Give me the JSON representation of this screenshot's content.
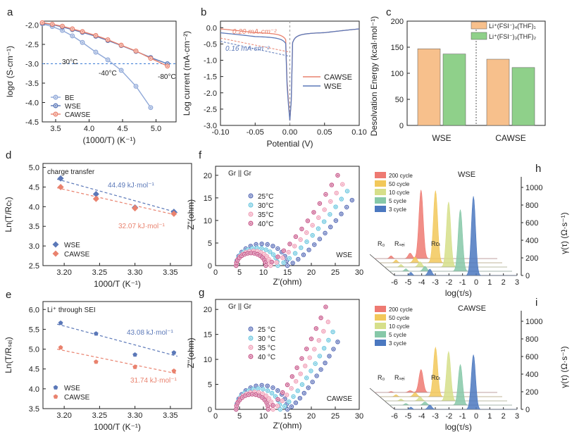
{
  "figure": {
    "panels": [
      {
        "id": "a",
        "type": "line",
        "xlabel": "(1000/T) (K⁻¹)",
        "ylabel": "logσ (S·cm⁻¹)",
        "xlim": [
          3.3,
          5.3
        ],
        "ylim": [
          -4.5,
          -1.9
        ],
        "xticks": [
          "3.5",
          "4.0",
          "4.5",
          "5.0"
        ],
        "yticks": [
          "-2.0",
          "-2.5",
          "-3.0",
          "-3.5",
          "-4.0",
          "-4.5"
        ],
        "series": [
          {
            "name": "BE",
            "color": "#8fa8d8",
            "x": [
              3.3,
              3.45,
              3.6,
              3.75,
              3.9,
              4.1,
              4.28,
              4.48,
              4.7,
              4.92
            ],
            "y": [
              -1.97,
              -2.04,
              -2.14,
              -2.28,
              -2.45,
              -2.7,
              -2.9,
              -3.17,
              -3.58,
              -4.13
            ]
          },
          {
            "name": "WSE",
            "color": "#5b78b8",
            "x": [
              3.3,
              3.45,
              3.6,
              3.75,
              3.9,
              4.1,
              4.28,
              4.48,
              4.7,
              4.92,
              5.17
            ],
            "y": [
              -1.95,
              -1.99,
              -2.05,
              -2.12,
              -2.19,
              -2.29,
              -2.4,
              -2.53,
              -2.68,
              -2.84,
              -3.0
            ]
          },
          {
            "name": "CAWSE",
            "color": "#e9826e",
            "x": [
              3.3,
              3.45,
              3.6,
              3.75,
              3.9,
              4.1,
              4.28,
              4.48,
              4.7,
              4.92,
              5.17
            ],
            "y": [
              -1.94,
              -1.98,
              -2.03,
              -2.1,
              -2.17,
              -2.27,
              -2.38,
              -2.52,
              -2.67,
              -2.86,
              -3.06
            ]
          }
        ],
        "hline": -3.0,
        "annotations": [
          "30°C",
          "-40°C",
          "-80°C"
        ]
      },
      {
        "id": "b",
        "type": "line",
        "xlabel": "Potential (V)",
        "ylabel": "Log current (mA·cm⁻²)",
        "xlim": [
          -0.1,
          0.1
        ],
        "ylim": [
          -3.0,
          0.2
        ],
        "xticks": [
          "-0.10",
          "-0.05",
          "0.00",
          "0.05",
          "0.10"
        ],
        "yticks": [
          "0.0",
          "-0.5",
          "-1.0",
          "-1.5",
          "-2.0",
          "-2.5",
          "-3.0"
        ],
        "series": [
          {
            "name": "CAWSE",
            "color": "#e9826e"
          },
          {
            "name": "WSE",
            "color": "#5b78b8"
          }
        ],
        "annotations": [
          "0.20 mA·cm⁻²",
          "0.16 mA·cm⁻²"
        ]
      },
      {
        "id": "c",
        "type": "bar",
        "ylabel": "Desolvation Energy  (kcal·mol⁻¹)",
        "ylim": [
          0,
          200
        ],
        "yticks": [
          "0",
          "50",
          "100",
          "150",
          "200"
        ],
        "categories": [
          "WSE",
          "CAWSE"
        ],
        "series": [
          {
            "name": "Li⁺(FSI⁻)₄(THF)₁",
            "color": "#f7c08c",
            "values": [
              147,
              127
            ]
          },
          {
            "name": "Li⁺(FSI⁻)₃(THF)₂",
            "color": "#8fd08a",
            "values": [
              137,
              111
            ]
          }
        ]
      },
      {
        "id": "d",
        "type": "scatter",
        "xlabel": "1000/T (K⁻¹)",
        "ylabel": "Ln(T/Rᴄₜ)",
        "xlim": [
          3.17,
          3.38
        ],
        "ylim": [
          2.5,
          5.1
        ],
        "xticks": [
          "3.20",
          "3.25",
          "3.30",
          "3.35"
        ],
        "yticks": [
          "2.5",
          "3.0",
          "3.5",
          "4.0",
          "4.5",
          "5.0"
        ],
        "title": "charge transfer",
        "series": [
          {
            "name": "WSE",
            "color": "#5b78b8",
            "x": [
              3.195,
              3.245,
              3.3,
              3.355
            ],
            "y": [
              4.72,
              4.32,
              3.98,
              3.87
            ]
          },
          {
            "name": "CAWSE",
            "color": "#e9826e",
            "x": [
              3.195,
              3.245,
              3.3,
              3.355
            ],
            "y": [
              4.5,
              4.2,
              3.96,
              3.82
            ]
          }
        ],
        "annotations": [
          "44.49 kJ·mol⁻¹",
          "32.07 kJ·mol⁻¹"
        ]
      },
      {
        "id": "e",
        "type": "scatter",
        "xlabel": "1000/T (K⁻¹)",
        "ylabel": "Ln(T/Rₛₑᵢ)",
        "xlim": [
          3.17,
          3.38
        ],
        "ylim": [
          3.5,
          6.2
        ],
        "xticks": [
          "3.20",
          "3.25",
          "3.30",
          "3.35"
        ],
        "yticks": [
          "3.5",
          "4.0",
          "4.5",
          "5.0",
          "5.5",
          "6.0"
        ],
        "title": "Li⁺ through SEI",
        "series": [
          {
            "name": "WSE",
            "color": "#5b78b8",
            "x": [
              3.195,
              3.245,
              3.3,
              3.355
            ],
            "y": [
              5.66,
              5.39,
              4.86,
              4.91
            ]
          },
          {
            "name": "CAWSE",
            "color": "#e9826e",
            "x": [
              3.195,
              3.245,
              3.3,
              3.355
            ],
            "y": [
              5.04,
              4.68,
              4.55,
              4.45
            ]
          }
        ],
        "annotations": [
          "43.08 kJ·mol⁻¹",
          "31.74 kJ·mol⁻¹"
        ]
      },
      {
        "id": "f",
        "type": "scatter",
        "xlabel": "Z'(ohm)",
        "ylabel": "-Z''(ohm)",
        "xlim": [
          0,
          30
        ],
        "ylim": [
          0,
          22
        ],
        "xticks": [
          "0",
          "5",
          "10",
          "15",
          "20",
          "25",
          "30"
        ],
        "yticks": [
          "0",
          "5",
          "10",
          "15",
          "20"
        ],
        "title": "Gr || Gr",
        "label": "WSE",
        "series": [
          {
            "name": "25°C",
            "color": "#5b6fb8",
            "x": [
              15,
              28.5
            ],
            "y": [
              0,
              14.5
            ]
          },
          {
            "name": "30°C",
            "color": "#6ec8e0",
            "x": [
              13,
              27.5
            ],
            "y": [
              0,
              16.5
            ]
          },
          {
            "name": "35°C",
            "color": "#f0a0b8",
            "x": [
              11.5,
              26.5
            ],
            "y": [
              0,
              18
            ]
          },
          {
            "name": "40°C",
            "color": "#c85a8c",
            "x": [
              10.5,
              25.5
            ],
            "y": [
              0,
              20
            ]
          }
        ]
      },
      {
        "id": "g",
        "type": "scatter",
        "xlabel": "Z'(ohm)",
        "ylabel": "-Z''(ohm)",
        "xlim": [
          0,
          30
        ],
        "ylim": [
          0,
          22
        ],
        "xticks": [
          "0",
          "5",
          "10",
          "15",
          "20",
          "25",
          "30"
        ],
        "yticks": [
          "0",
          "5",
          "10",
          "15",
          "20"
        ],
        "title": "Gr || Gr",
        "label": "CAWSE",
        "series": [
          {
            "name": "25 °C",
            "color": "#5b6fb8",
            "x": [
              15,
              25.5
            ],
            "y": [
              0,
              13.5
            ]
          },
          {
            "name": "30 °C",
            "color": "#6ec8e0",
            "x": [
              13.5,
              24.5
            ],
            "y": [
              0,
              15.5
            ]
          },
          {
            "name": "35 °C",
            "color": "#f0a0b8",
            "x": [
              12,
              23.5
            ],
            "y": [
              0,
              17.5
            ]
          },
          {
            "name": "40 °C",
            "color": "#c85a8c",
            "x": [
              11,
              23
            ],
            "y": [
              0,
              20.5
            ]
          }
        ]
      },
      {
        "id": "h",
        "type": "area",
        "xlabel": "log(τ/s)",
        "zlabel": "γ(τ) (Ω·s⁻¹)",
        "xticks": [
          "-6",
          "-5",
          "-4",
          "-3",
          "-2",
          "-1",
          "0",
          "1",
          "2",
          "3"
        ],
        "zticks": [
          "0",
          "200",
          "400",
          "600",
          "800",
          "1000"
        ],
        "label": "WSE",
        "peak_labels": [
          "R₀",
          "Rₛₑᵢ",
          "Rᴄₜ"
        ],
        "series": [
          {
            "name": "200 cycle",
            "color": "#ee7a72",
            "peak_x": -2.6,
            "peak_z": 780
          },
          {
            "name": "50 cycle",
            "color": "#f2c85a",
            "peak_x": -1.9,
            "peak_z": 820
          },
          {
            "name": "10 cycle",
            "color": "#d6df8a",
            "peak_x": -1.3,
            "peak_z": 740
          },
          {
            "name": "5 cycle",
            "color": "#86c8a8",
            "peak_x": -0.8,
            "peak_z": 700
          },
          {
            "name": "3 cycle",
            "color": "#4b78c0",
            "peak_x": -0.2,
            "peak_z": 900
          }
        ]
      },
      {
        "id": "i",
        "type": "area",
        "xlabel": "log(τ/s)",
        "zlabel": "γ(τ) (Ω·s⁻¹)",
        "xticks": [
          "-6",
          "-5",
          "-4",
          "-3",
          "-2",
          "-1",
          "0",
          "1",
          "2",
          "3"
        ],
        "zticks": [
          "0",
          "200",
          "400",
          "600",
          "800",
          "1000"
        ],
        "label": "CAWSE",
        "peak_labels": [
          "R₀",
          "Rₛₑᵢ",
          "Rᴄₜ"
        ],
        "series": [
          {
            "name": "200 cycle",
            "color": "#ee7a72",
            "peak_x": -2.6,
            "peak_z": 260
          },
          {
            "name": "50 cycle",
            "color": "#f2c85a",
            "peak_x": -1.9,
            "peak_z": 560
          },
          {
            "name": "10 cycle",
            "color": "#d6df8a",
            "peak_x": -1.3,
            "peak_z": 560
          },
          {
            "name": "5 cycle",
            "color": "#86c8a8",
            "peak_x": -0.8,
            "peak_z": 460
          },
          {
            "name": "3 cycle",
            "color": "#4b78c0",
            "peak_x": -0.2,
            "peak_z": 620
          }
        ]
      }
    ]
  },
  "chart_data": [
    {
      "panel": "a",
      "type": "line",
      "title": "",
      "xlabel": "(1000/T) (K⁻¹)",
      "ylabel": "logσ (S·cm⁻¹)",
      "xlim": [
        3.3,
        5.3
      ],
      "ylim": [
        -4.5,
        -1.9
      ]
    },
    {
      "panel": "b",
      "type": "line",
      "xlabel": "Potential (V)",
      "ylabel": "Log current (mA·cm⁻²)",
      "xlim": [
        -0.1,
        0.1
      ],
      "ylim": [
        -3.0,
        0.2
      ]
    },
    {
      "panel": "c",
      "type": "bar",
      "categories": [
        "WSE",
        "CAWSE"
      ],
      "series": [
        {
          "name": "Li⁺(FSI⁻)₄(THF)₁",
          "values": [
            147,
            127
          ]
        },
        {
          "name": "Li⁺(FSI⁻)₃(THF)₂",
          "values": [
            137,
            111
          ]
        }
      ],
      "ylabel": "Desolvation Energy (kcal·mol⁻¹)",
      "ylim": [
        0,
        200
      ]
    },
    {
      "panel": "d",
      "type": "scatter",
      "title": "charge transfer",
      "xlabel": "1000/T (K⁻¹)",
      "ylabel": "Ln(T/Rct)"
    },
    {
      "panel": "e",
      "type": "scatter",
      "title": "Li⁺ through SEI",
      "xlabel": "1000/T (K⁻¹)",
      "ylabel": "Ln(T/RSEI)"
    },
    {
      "panel": "f",
      "type": "scatter",
      "title": "Gr || Gr",
      "xlabel": "Z'(ohm)",
      "ylabel": "-Z''(ohm)"
    },
    {
      "panel": "g",
      "type": "scatter",
      "title": "Gr || Gr",
      "xlabel": "Z'(ohm)",
      "ylabel": "-Z''(ohm)"
    },
    {
      "panel": "h",
      "type": "area",
      "xlabel": "log(τ/s)",
      "ylabel": "γ(τ) (Ω·s⁻¹)"
    },
    {
      "panel": "i",
      "type": "area",
      "xlabel": "log(τ/s)",
      "ylabel": "γ(τ) (Ω·s⁻¹)"
    }
  ]
}
